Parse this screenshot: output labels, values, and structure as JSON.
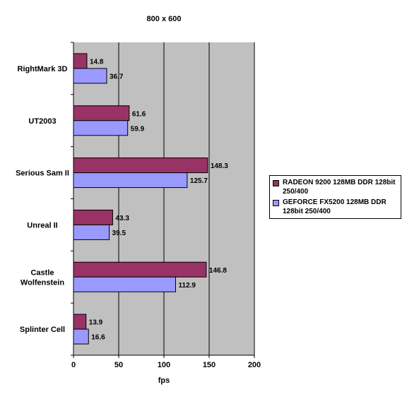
{
  "chart_data": {
    "type": "bar",
    "orientation": "horizontal",
    "title": "800 x 600",
    "xlabel": "fps",
    "ylabel": "",
    "xlim": [
      0,
      200
    ],
    "x_ticks": [
      "0",
      "50",
      "100",
      "150",
      "200"
    ],
    "grid": "vertical",
    "legend_position": "right",
    "categories": [
      "RightMark 3D",
      "UT2003",
      "Serious Sam II",
      "Unreal II",
      "Castle\nWolfenstein",
      "Splinter Cell"
    ],
    "series": [
      {
        "name": "RADEON 9200 128MB DDR 128bit 250/400",
        "color": "#993366",
        "values": [
          14.8,
          61.6,
          148.3,
          43.3,
          146.8,
          13.9
        ]
      },
      {
        "name": "GEFORCE FX5200 128MB DDR 128bit 250/400",
        "color": "#9999ff",
        "values": [
          36.7,
          59.9,
          125.7,
          39.5,
          112.9,
          16.6
        ]
      }
    ],
    "plot_background": "#c0c0c0"
  }
}
